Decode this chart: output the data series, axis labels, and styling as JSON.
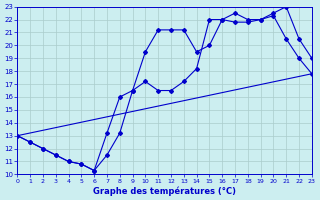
{
  "title": "Graphe des températures (°C)",
  "bg_color": "#cceef0",
  "grid_color": "#aacccc",
  "line_color": "#0000cc",
  "xmin": 0,
  "xmax": 23,
  "ymin": 10,
  "ymax": 23,
  "series1_x": [
    0,
    1,
    2,
    3,
    4,
    5,
    6,
    7,
    8,
    9,
    10,
    11,
    12,
    13,
    14,
    15,
    16,
    17,
    18,
    19,
    20,
    21,
    22,
    23
  ],
  "series1_y": [
    13,
    12.5,
    12,
    11.5,
    11,
    10.8,
    10.3,
    11.5,
    13.2,
    16.5,
    19.5,
    21.2,
    21.2,
    21.2,
    19.5,
    20,
    22,
    21.8,
    21.8,
    22,
    22.5,
    23,
    20.5,
    19
  ],
  "series2_x": [
    0,
    1,
    2,
    3,
    4,
    5,
    6,
    7,
    8,
    9,
    10,
    11,
    12,
    13,
    14,
    15,
    16,
    17,
    18,
    19,
    20,
    21,
    22,
    23
  ],
  "series2_y": [
    13,
    12.5,
    12,
    11.5,
    11,
    10.8,
    10.3,
    13.2,
    16,
    16.5,
    17.2,
    16.5,
    16.5,
    17.2,
    18.2,
    22,
    22,
    22.5,
    22,
    22,
    22.3,
    20.5,
    19,
    17.8
  ],
  "series3_x": [
    0,
    23
  ],
  "series3_y": [
    13,
    17.8
  ]
}
